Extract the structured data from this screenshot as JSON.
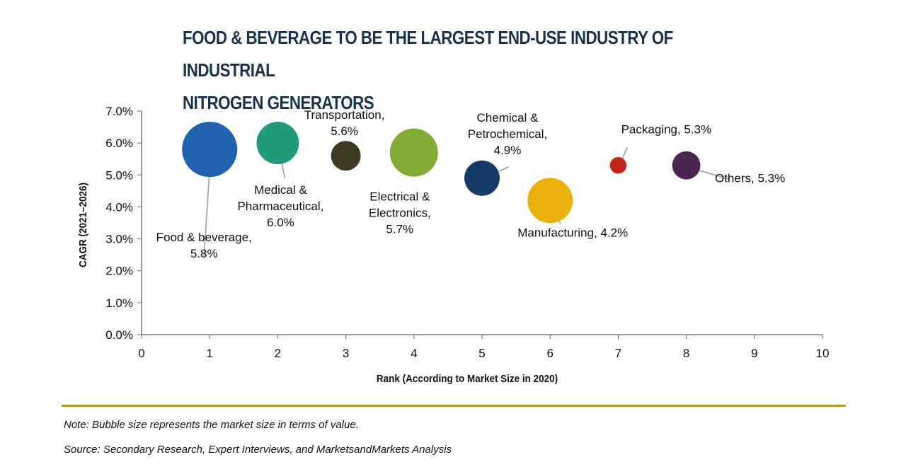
{
  "chart_data": {
    "type": "scatter",
    "subtype": "bubble",
    "title": "FOOD & BEVERAGE TO BE THE LARGEST END-USE INDUSTRY OF INDUSTRIAL NITROGEN GENERATORS",
    "title_lines": [
      "FOOD & BEVERAGE TO BE THE LARGEST END-USE INDUSTRY OF INDUSTRIAL",
      "NITROGEN GENERATORS"
    ],
    "xlabel": "Rank (According to Market Size in 2020)",
    "ylabel": "CAGR (2021–2026)",
    "xlim": [
      0,
      10
    ],
    "ylim": [
      0,
      7
    ],
    "x_ticks": [
      "0",
      "1",
      "2",
      "3",
      "4",
      "5",
      "6",
      "7",
      "8",
      "9",
      "10"
    ],
    "y_ticks": [
      "0.0%",
      "1.0%",
      "2.0%",
      "3.0%",
      "4.0%",
      "5.0%",
      "6.0%",
      "7.0%"
    ],
    "grid": false,
    "legend": "none",
    "size_note": "Bubble size represents the market size in terms of value (relative)",
    "points": [
      {
        "name": "Food & beverage",
        "x": 1,
        "y": 5.8,
        "size": 1.0,
        "color": "#1f63b0",
        "label_lines": [
          "Food & beverage,",
          "5.8%"
        ]
      },
      {
        "name": "Medical & Pharmaceutical",
        "x": 2,
        "y": 6.0,
        "size": 0.59,
        "color": "#1f9a7c",
        "label_lines": [
          "Medical &",
          "Pharmaceutical,",
          "6.0%"
        ]
      },
      {
        "name": "Transportation",
        "x": 3,
        "y": 5.6,
        "size": 0.29,
        "color": "#3e3a22",
        "label_lines": [
          "Transportation,",
          "5.6%"
        ]
      },
      {
        "name": "Electrical & Electronics",
        "x": 4,
        "y": 5.7,
        "size": 0.76,
        "color": "#82ab35",
        "label_lines": [
          "Electrical &",
          "Electronics,",
          "5.7%"
        ]
      },
      {
        "name": "Chemical & Petrochemical",
        "x": 5,
        "y": 4.9,
        "size": 0.41,
        "color": "#163a66",
        "label_lines": [
          "Chemical &",
          "Petrochemical,",
          "4.9%"
        ]
      },
      {
        "name": "Manufacturing",
        "x": 6,
        "y": 4.2,
        "size": 0.67,
        "color": "#eab10c",
        "label_lines": [
          "Manufacturing, 4.2%"
        ]
      },
      {
        "name": "Packaging",
        "x": 7,
        "y": 5.3,
        "size": 0.09,
        "color": "#c0261c",
        "label_lines": [
          "Packaging, 5.3%"
        ]
      },
      {
        "name": "Others",
        "x": 8,
        "y": 5.3,
        "size": 0.26,
        "color": "#4a2650",
        "label_lines": [
          "Others, 5.3%"
        ]
      }
    ]
  },
  "footer": {
    "note": "Note: Bubble size represents the market size in terms of value.",
    "source": "Source: Secondary Research, Expert Interviews, and MarketsandMarkets Analysis",
    "divider_color": "#b8982a"
  }
}
